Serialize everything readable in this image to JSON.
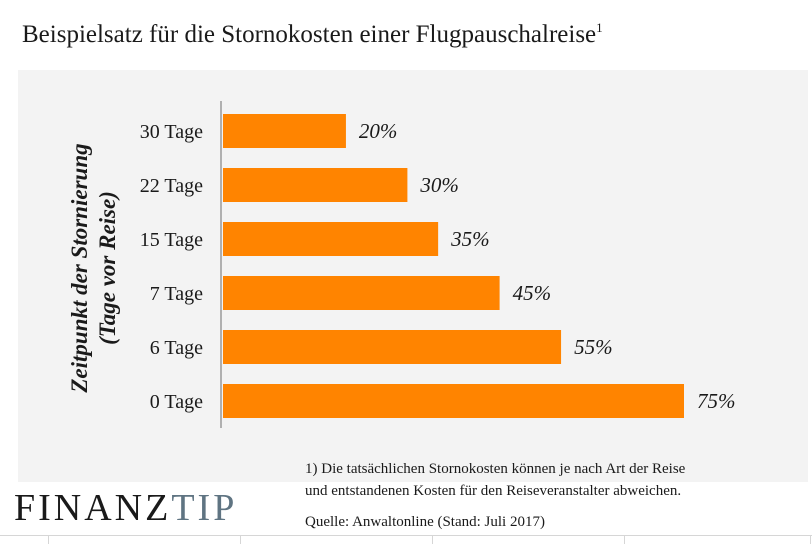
{
  "title": {
    "text": "Beispielsatz für die Stornokosten einer Flugpauschalreise",
    "superscript": "1"
  },
  "chart_data": {
    "type": "bar",
    "orientation": "horizontal",
    "categories": [
      "30 Tage",
      "22 Tage",
      "15 Tage",
      "7 Tage",
      "6 Tage",
      "0 Tage"
    ],
    "values": [
      20,
      30,
      35,
      45,
      55,
      75
    ],
    "value_labels": [
      "20%",
      "30%",
      "35%",
      "45%",
      "55%",
      "75%"
    ],
    "unit": "%",
    "ylabel": [
      "Zeitpunkt der Stornierung",
      "(Tage vor Reise)"
    ],
    "xlabel": "",
    "xlim": [
      0,
      75
    ],
    "grid": false,
    "bar_color": "#ff8400"
  },
  "footnote": {
    "line1": "1) Die tatsächlichen Stornokosten können je nach Art der Reise",
    "line2": "und entstandenen Kosten für den Reiseveranstalter abweichen."
  },
  "source": "Quelle: Anwaltonline (Stand: Juli 2017)",
  "logo": {
    "part1": "FINANZ",
    "part2": "TIP"
  }
}
